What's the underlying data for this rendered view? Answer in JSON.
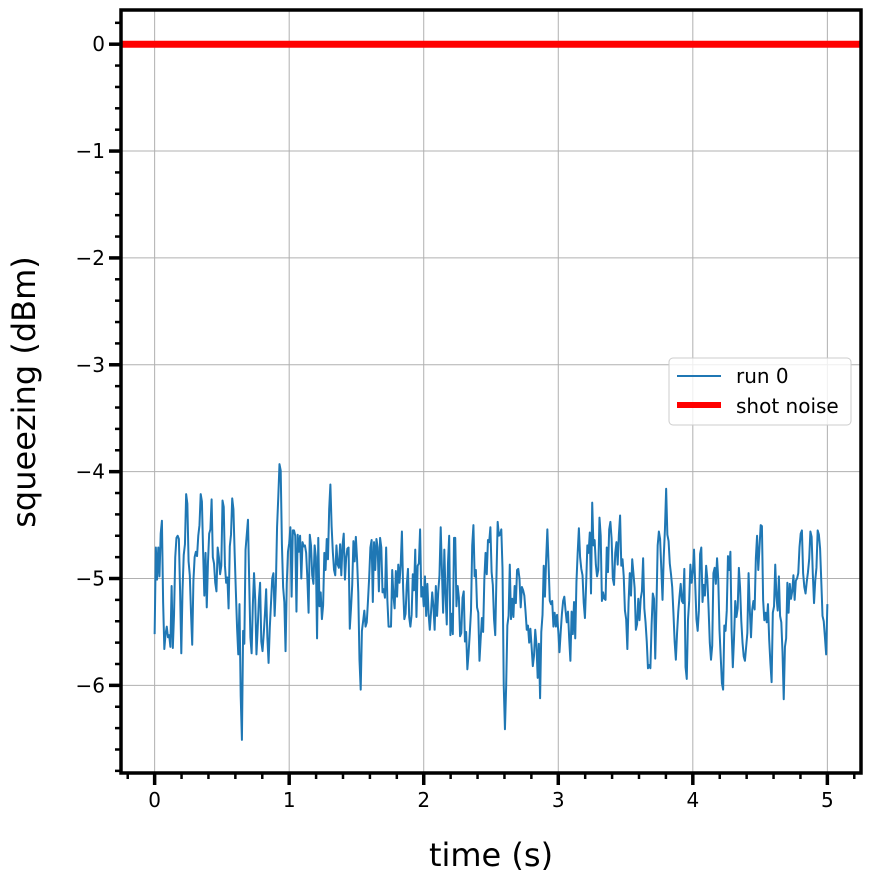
{
  "chart_data": {
    "type": "line",
    "xlabel": "time (s)",
    "ylabel": "squeezing (dBm)",
    "xlim": [
      -0.25,
      5.25
    ],
    "ylim": [
      -6.82,
      0.32
    ],
    "xticks": [
      0,
      1,
      2,
      3,
      4,
      5
    ],
    "xtick_labels": [
      "0",
      "1",
      "2",
      "3",
      "4",
      "5"
    ],
    "yticks": [
      0,
      -1,
      -2,
      -3,
      -4,
      -5,
      -6
    ],
    "ytick_labels": [
      "0",
      "−1",
      "−2",
      "−3",
      "−4",
      "−5",
      "−6"
    ],
    "x_minor_step": 0.2,
    "y_minor_step": 0.2,
    "grid": true,
    "legend_position": "center-right",
    "series": [
      {
        "name": "run 0",
        "color": "#1f77b4",
        "x_start": 0,
        "x_step": 0.01,
        "values": [
          -5.52,
          -4.71,
          -5.01,
          -4.71,
          -4.98,
          -4.58,
          -4.46,
          -5.22,
          -5.66,
          -5.52,
          -5.45,
          -5.55,
          -5.53,
          -5.64,
          -5.07,
          -5.65,
          -5.34,
          -4.8,
          -4.62,
          -4.6,
          -4.63,
          -5.12,
          -5.7,
          -5.11,
          -4.78,
          -4.68,
          -4.21,
          -4.3,
          -4.84,
          -4.97,
          -5.32,
          -5.62,
          -5.02,
          -4.8,
          -4.75,
          -4.79,
          -4.6,
          -4.5,
          -4.21,
          -4.28,
          -4.75,
          -5.16,
          -4.76,
          -5.27,
          -4.85,
          -4.58,
          -4.54,
          -4.26,
          -4.8,
          -4.86,
          -5.04,
          -5.12,
          -4.71,
          -4.8,
          -4.96,
          -4.88,
          -4.27,
          -4.33,
          -4.88,
          -5.04,
          -4.99,
          -5.28,
          -4.7,
          -4.59,
          -4.25,
          -4.35,
          -4.76,
          -5.12,
          -5.46,
          -5.71,
          -5.24,
          -6.1,
          -6.51,
          -5.49,
          -5.61,
          -4.73,
          -4.59,
          -4.45,
          -5.02,
          -5.55,
          -5.7,
          -5.25,
          -4.95,
          -5.2,
          -5.71,
          -5.47,
          -5.2,
          -5.04,
          -5.59,
          -5.68,
          -5.52,
          -5.33,
          -5.1,
          -5.55,
          -5.79,
          -5.46,
          -5.23,
          -5.0,
          -4.95,
          -5.35,
          -5.07,
          -4.52,
          -4.24,
          -3.93,
          -3.99,
          -4.68,
          -5.08,
          -5.22,
          -5.68,
          -5.05,
          -4.75,
          -4.67,
          -4.52,
          -5.17,
          -4.55,
          -4.55,
          -4.6,
          -5.31,
          -4.59,
          -4.75,
          -4.6,
          -5.0,
          -4.66,
          -4.7,
          -4.69,
          -4.76,
          -5.0,
          -5.32,
          -4.59,
          -4.69,
          -4.97,
          -5.05,
          -4.69,
          -4.8,
          -5.56,
          -4.62,
          -5.26,
          -5.13,
          -5.38,
          -5.25,
          -4.76,
          -4.92,
          -4.63,
          -4.82,
          -4.35,
          -4.12,
          -4.51,
          -4.75,
          -4.92,
          -4.97,
          -4.69,
          -4.87,
          -4.9,
          -4.68,
          -4.97,
          -4.69,
          -4.58,
          -5.01,
          -4.81,
          -4.72,
          -4.71,
          -5.47,
          -5.28,
          -5.06,
          -4.65,
          -4.84,
          -4.61,
          -4.82,
          -5.13,
          -5.76,
          -6.04,
          -5.49,
          -5.4,
          -5.3,
          -5.45,
          -5.41,
          -5.21,
          -4.99,
          -4.71,
          -4.64,
          -5.22,
          -4.66,
          -4.92,
          -4.63,
          -4.71,
          -5.12,
          -4.62,
          -4.71,
          -5.13,
          -5.1,
          -5.18,
          -4.71,
          -5.2,
          -5.45,
          -5.45,
          -5.45,
          -4.92,
          -5.16,
          -5.28,
          -4.93,
          -5.17,
          -4.87,
          -5.04,
          -4.87,
          -4.56,
          -5.09,
          -5.38,
          -5.33,
          -5.06,
          -4.91,
          -5.36,
          -5.45,
          -5.34,
          -4.96,
          -5.11,
          -4.73,
          -5.36,
          -4.88,
          -4.86,
          -4.54,
          -5.17,
          -5.08,
          -5.26,
          -4.98,
          -5.35,
          -5.05,
          -5.33,
          -5.48,
          -5.32,
          -5.13,
          -5.26,
          -5.48,
          -5.07,
          -5.35,
          -5.12,
          -4.97,
          -4.52,
          -4.92,
          -5.32,
          -4.73,
          -5.15,
          -5.43,
          -4.86,
          -4.6,
          -5.53,
          -5.33,
          -5.52,
          -4.62,
          -4.62,
          -5.26,
          -5.07,
          -5.18,
          -5.54,
          -5.51,
          -5.18,
          -5.12,
          -5.59,
          -5.5,
          -5.85,
          -5.7,
          -5.51,
          -5.3,
          -4.69,
          -4.5,
          -4.98,
          -4.92,
          -5.27,
          -5.32,
          -5.77,
          -5.56,
          -5.37,
          -5.5,
          -5.01,
          -4.76,
          -4.96,
          -4.64,
          -4.66,
          -4.52,
          -4.94,
          -5.06,
          -5.38,
          -5.53,
          -4.99,
          -4.47,
          -4.6,
          -4.59,
          -4.54,
          -4.91,
          -6.0,
          -6.41,
          -6.01,
          -5.44,
          -5.35,
          -4.87,
          -5.38,
          -5.19,
          -5.36,
          -5.07,
          -5.23,
          -4.92,
          -4.91,
          -5.0,
          -5.27,
          -5.08,
          -5.11,
          -5.16,
          -5.31,
          -5.48,
          -5.44,
          -5.6,
          -5.47,
          -5.64,
          -5.82,
          -5.72,
          -5.48,
          -5.62,
          -5.93,
          -5.61,
          -6.12,
          -5.5,
          -5.34,
          -4.88,
          -5.17,
          -4.82,
          -4.54,
          -4.87,
          -5.21,
          -5.24,
          -5.21,
          -5.45,
          -5.32,
          -5.45,
          -5.34,
          -5.49,
          -5.69,
          -5.5,
          -5.33,
          -5.21,
          -5.17,
          -5.3,
          -5.41,
          -5.31,
          -5.56,
          -5.77,
          -5.31,
          -5.52,
          -5.22,
          -5.56,
          -5.03,
          -4.76,
          -4.53,
          -4.8,
          -4.91,
          -4.97,
          -5.23,
          -5.37,
          -5.05,
          -4.69,
          -4.76,
          -4.57,
          -5.14,
          -4.29,
          -4.69,
          -4.64,
          -4.87,
          -4.98,
          -4.92,
          -4.43,
          -4.6,
          -5.21,
          -5.13,
          -5.19,
          -5.2,
          -4.71,
          -4.94,
          -4.54,
          -4.47,
          -4.63,
          -5.0,
          -5.06,
          -4.76,
          -4.66,
          -4.87,
          -4.59,
          -4.41,
          -4.88,
          -4.82,
          -4.98,
          -5.3,
          -5.38,
          -5.66,
          -5.22,
          -4.95,
          -5.16,
          -4.82,
          -4.95,
          -5.09,
          -5.48,
          -5.43,
          -5.19,
          -5.39,
          -5.19,
          -5.12,
          -4.81,
          -5.28,
          -5.41,
          -5.59,
          -5.84,
          -5.81,
          -5.84,
          -5.43,
          -5.14,
          -5.19,
          -5.75,
          -5.27,
          -4.69,
          -4.56,
          -4.63,
          -4.91,
          -5.2,
          -4.8,
          -4.54,
          -4.16,
          -4.59,
          -4.65,
          -4.86,
          -4.96,
          -5.08,
          -5.32,
          -5.59,
          -5.76,
          -5.51,
          -5.31,
          -5.17,
          -5.05,
          -5.21,
          -5.23,
          -4.91,
          -5.83,
          -5.94,
          -5.39,
          -5.21,
          -4.87,
          -5.04,
          -4.94,
          -4.73,
          -5.06,
          -5.38,
          -5.49,
          -5.3,
          -4.77,
          -4.71,
          -5.22,
          -5.06,
          -5.16,
          -4.88,
          -5.01,
          -5.28,
          -5.6,
          -5.76,
          -5.63,
          -4.95,
          -4.9,
          -5.05,
          -4.81,
          -5.01,
          -5.48,
          -5.73,
          -5.98,
          -6.04,
          -5.44,
          -5.49,
          -5.3,
          -4.79,
          -4.92,
          -4.75,
          -5.49,
          -5.83,
          -5.56,
          -5.21,
          -5.36,
          -5.28,
          -4.9,
          -5.09,
          -5.4,
          -5.6,
          -5.73,
          -5.77,
          -5.64,
          -5.51,
          -4.95,
          -5.29,
          -5.55,
          -5.29,
          -5.21,
          -5.29,
          -4.81,
          -4.6,
          -4.92,
          -4.71,
          -4.5,
          -4.51,
          -5.2,
          -5.39,
          -5.32,
          -5.41,
          -5.24,
          -5.57,
          -5.79,
          -5.97,
          -5.32,
          -5.26,
          -4.87,
          -5.17,
          -5.3,
          -4.98,
          -5.35,
          -5.41,
          -5.69,
          -6.13,
          -5.64,
          -5.56,
          -5.04,
          -5.32,
          -5.05,
          -5.19,
          -5.12,
          -4.97,
          -5.2,
          -5.02,
          -5.0,
          -4.95,
          -4.71,
          -4.58,
          -4.55,
          -4.95,
          -5.08,
          -5.14,
          -5.03,
          -4.94,
          -4.82,
          -4.56,
          -4.61,
          -4.96,
          -5.23,
          -5.02,
          -4.9,
          -4.55,
          -4.59,
          -4.72,
          -5.03,
          -5.35,
          -5.4,
          -5.55,
          -5.71,
          -5.24
        ]
      },
      {
        "name": "shot noise",
        "color": "#ff0000",
        "x": [
          -0.25,
          5.25
        ],
        "y": [
          0,
          0
        ]
      }
    ]
  }
}
